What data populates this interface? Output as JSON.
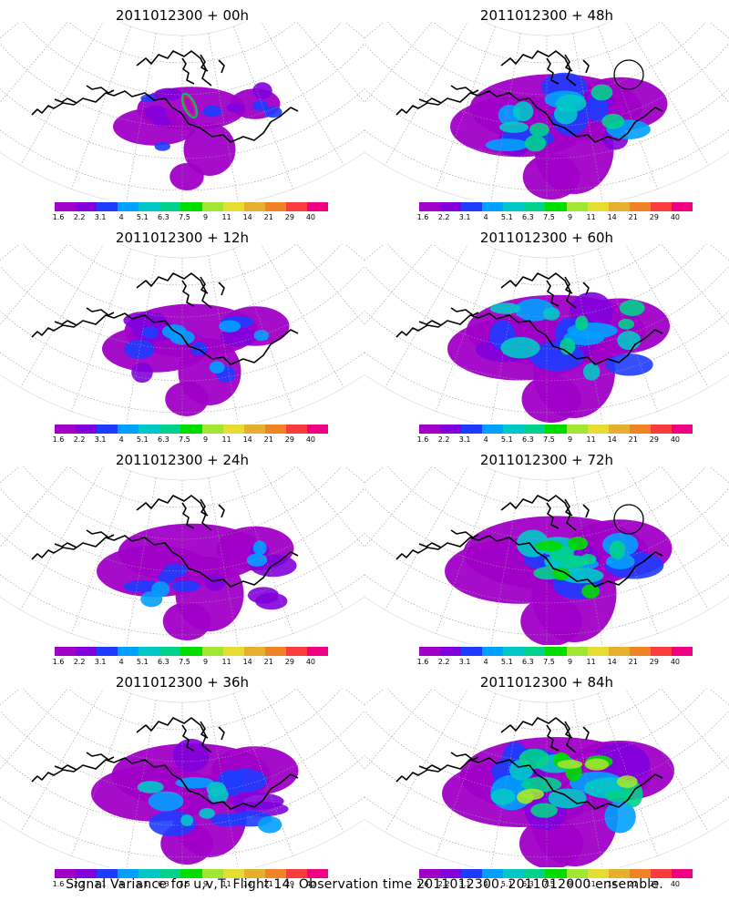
{
  "panels": [
    {
      "title": "2011012300 + 00h",
      "intensity": 0.25,
      "spread": 0.35,
      "contour": "green-red"
    },
    {
      "title": "2011012300 + 48h",
      "intensity": 0.55,
      "spread": 0.85,
      "contour": "black"
    },
    {
      "title": "2011012300 + 12h",
      "intensity": 0.35,
      "spread": 0.55,
      "contour": "none"
    },
    {
      "title": "2011012300 + 60h",
      "intensity": 0.6,
      "spread": 0.9,
      "contour": "none"
    },
    {
      "title": "2011012300 + 24h",
      "intensity": 0.42,
      "spread": 0.65,
      "contour": "none"
    },
    {
      "title": "2011012300 + 72h",
      "intensity": 0.7,
      "spread": 0.95,
      "contour": "black"
    },
    {
      "title": "2011012300 + 36h",
      "intensity": 0.48,
      "spread": 0.75,
      "contour": "none"
    },
    {
      "title": "2011012300 + 84h",
      "intensity": 0.78,
      "spread": 1.0,
      "contour": "none"
    }
  ],
  "colorbar": {
    "colors": [
      "#a000c8",
      "#8200dc",
      "#1e3cff",
      "#00a0ff",
      "#00c8c8",
      "#00d28c",
      "#00dc00",
      "#a0e632",
      "#e6dc32",
      "#e6af2d",
      "#f08228",
      "#fa3c3c",
      "#f00082"
    ],
    "labels": [
      "1.6",
      "2.2",
      "3.1",
      "4",
      "5.1",
      "6.3",
      "7.5",
      "9",
      "11",
      "14",
      "21",
      "29",
      "40"
    ]
  },
  "footer": "Signal Variance for u,v,T. Flight 14. Observation time 2011012300. 2011012000 ensemble."
}
